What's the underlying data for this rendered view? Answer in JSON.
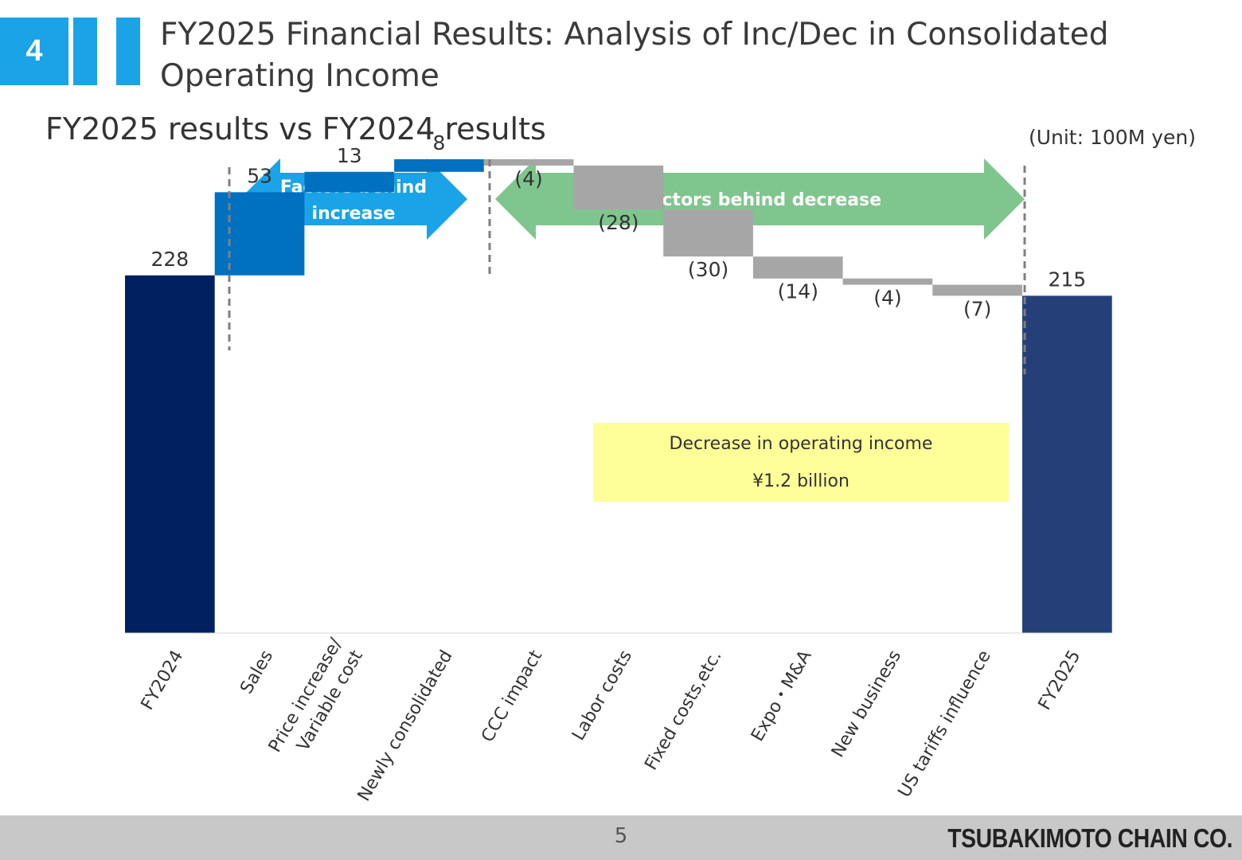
{
  "header": {
    "section_number": "4",
    "title": "FY2025 Financial Results: Analysis of Inc/Dec in Consolidated Operating Income"
  },
  "subtitle": "FY2025 results vs FY2024 results",
  "unit_label": "(Unit: 100M yen)",
  "factor_arrows": {
    "increase": [
      "Factors behind",
      "increase"
    ],
    "decrease": "Factors behind decrease"
  },
  "callout": {
    "line1": "Decrease in operating income",
    "line2": "¥1.2 billion"
  },
  "footer": {
    "page_number": "5",
    "company": "TSUBAKIMOTO CHAIN CO."
  },
  "colors": {
    "start_total": "#002060",
    "end_total": "#254079",
    "increase": "#0070c0",
    "decrease": "#a6a6a6",
    "increase_arrow": "#1aa3e6",
    "decrease_arrow": "#7fc58e",
    "callout_bg": "#ffff99",
    "badge": "#1aa3e6"
  },
  "chart_data": {
    "type": "bar",
    "subtype": "waterfall",
    "categories": [
      "FY2024",
      "Sales",
      "Price increase/\nVariable cost",
      "Newly consolidated",
      "CCC impact",
      "Labor costs",
      "Fixed costs,etc.",
      "Expo・M&A",
      "New business",
      "US tariffs influence",
      "FY2025"
    ],
    "values": [
      228,
      53,
      13,
      8,
      -4,
      -28,
      -30,
      -14,
      -4,
      -7,
      215
    ],
    "kinds": [
      "total",
      "delta",
      "delta",
      "delta",
      "delta",
      "delta",
      "delta",
      "delta",
      "delta",
      "delta",
      "total"
    ],
    "data_labels": [
      "228",
      "53",
      "13",
      "8",
      "(4)",
      "(28)",
      "(30)",
      "(14)",
      "(4)",
      "(7)",
      "215"
    ],
    "ylim": [
      0,
      302
    ],
    "grid": false,
    "legend": "none"
  }
}
